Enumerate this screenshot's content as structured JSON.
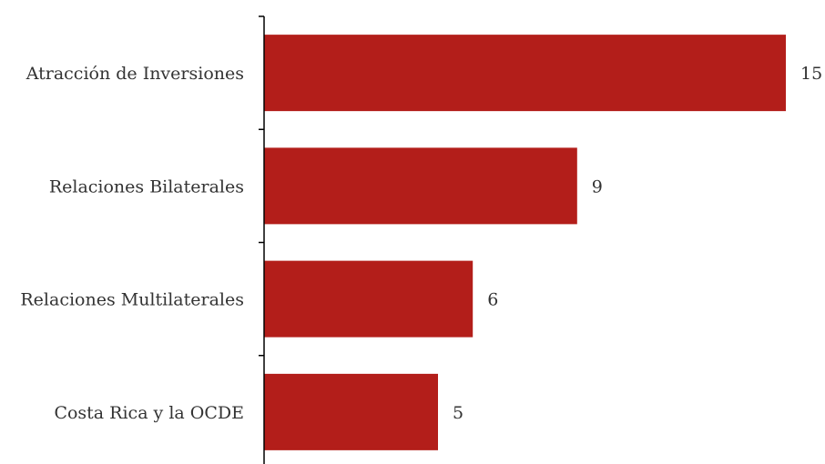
{
  "chart_data": {
    "type": "bar",
    "orientation": "horizontal",
    "title": "",
    "xlabel": "",
    "ylabel": "",
    "categories": [
      "Atracción de Inversiones",
      "Relaciones Bilaterales",
      "Relaciones Multilaterales",
      "Costa Rica y la OCDE"
    ],
    "values": [
      15,
      9,
      6,
      5
    ],
    "xlim": [
      0,
      15
    ],
    "grid": false,
    "legend": "none",
    "bar_color": "#b31e1a",
    "text_color": "#333333"
  }
}
